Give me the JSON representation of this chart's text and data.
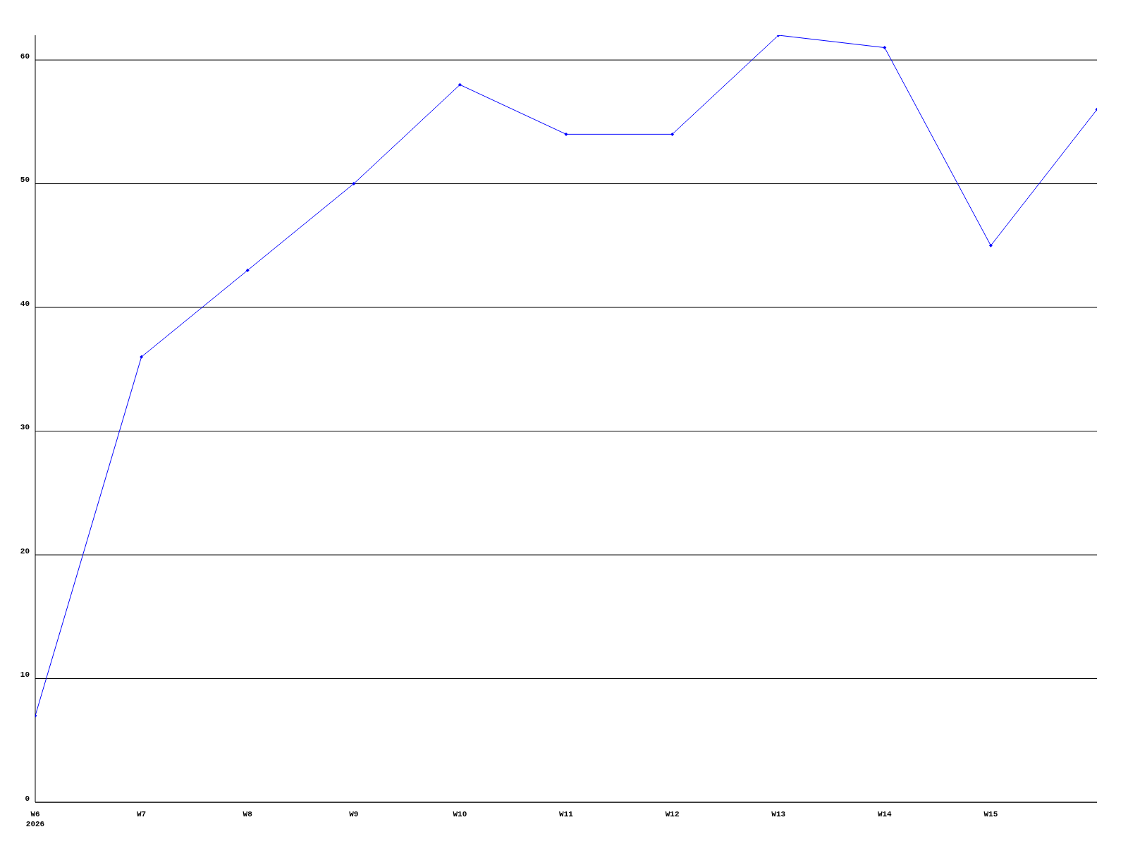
{
  "chart_data": {
    "type": "line",
    "categories": [
      "W6\n2026",
      "W7",
      "W8",
      "W9",
      "W10",
      "W11",
      "W12",
      "W13",
      "W14",
      "W15",
      null
    ],
    "series": [
      {
        "color": "#0000ff",
        "values": [
          7,
          36,
          43,
          50,
          58,
          54,
          54,
          62,
          61,
          45,
          56
        ]
      }
    ],
    "ylim": [
      0,
      62
    ],
    "yticks": [
      0,
      10,
      20,
      30,
      40,
      50,
      60
    ],
    "grid": "y",
    "marker": "diamond",
    "line_style": "solid",
    "legend": false
  }
}
